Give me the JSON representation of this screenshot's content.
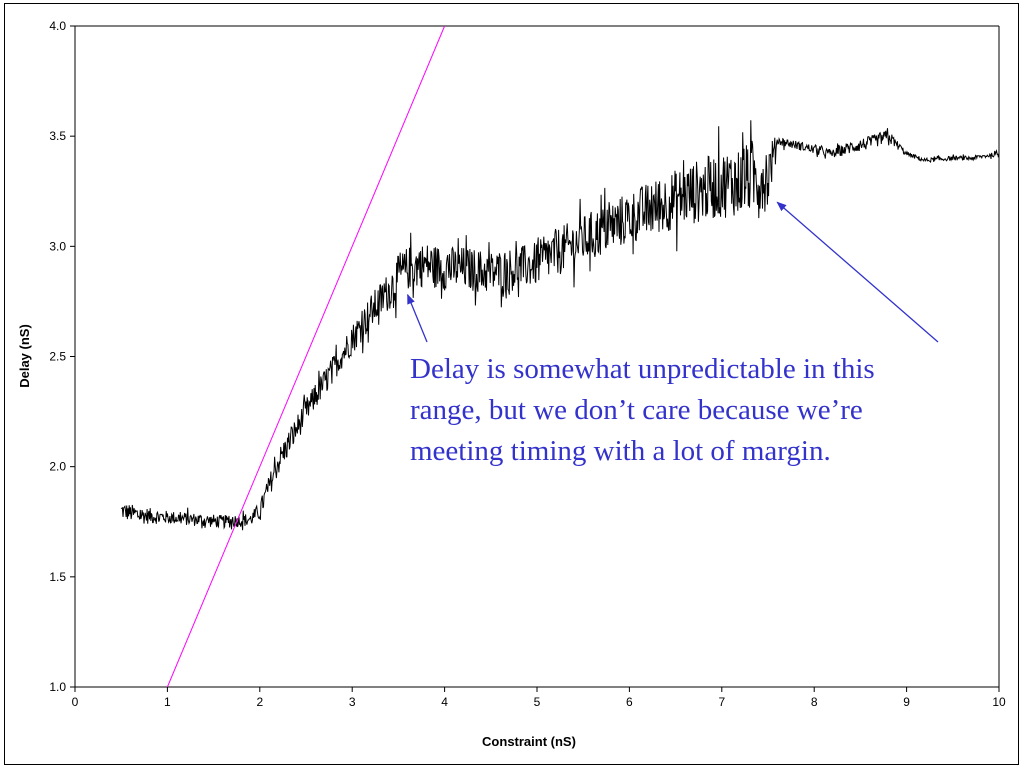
{
  "chart_data": {
    "type": "line",
    "xlabel": "Constraint (nS)",
    "ylabel": "Delay (nS)",
    "xlim": [
      0,
      10
    ],
    "ylim": [
      1.0,
      4.0
    ],
    "x_ticks": [
      "0",
      "1",
      "2",
      "3",
      "4",
      "5",
      "6",
      "7",
      "8",
      "9",
      "10"
    ],
    "y_ticks": [
      "1.0",
      "1.5",
      "2.0",
      "2.5",
      "3.0",
      "3.5",
      "4.0"
    ],
    "grid": false,
    "legend": "none",
    "series": [
      {
        "color": "#000000",
        "x": [
          0.5,
          0.7,
          1.0,
          1.3,
          1.6,
          1.9,
          2.0,
          2.2,
          2.5,
          2.8,
          3.0,
          3.2,
          3.4,
          3.5,
          3.6,
          3.8,
          4.0,
          4.2,
          4.5,
          4.8,
          5.0,
          5.2,
          5.5,
          5.8,
          6.0,
          6.3,
          6.6,
          6.9,
          7.2,
          7.5,
          7.6,
          7.8,
          8.0,
          8.2,
          8.4,
          8.6,
          8.8,
          9.0,
          9.2,
          9.5,
          9.7,
          10.0
        ],
        "y": [
          1.8,
          1.78,
          1.77,
          1.76,
          1.75,
          1.76,
          1.8,
          2.02,
          2.25,
          2.45,
          2.58,
          2.7,
          2.8,
          2.86,
          2.9,
          2.92,
          2.9,
          2.9,
          2.88,
          2.9,
          2.92,
          2.97,
          3.03,
          3.09,
          3.13,
          3.18,
          3.23,
          3.27,
          3.3,
          3.32,
          3.48,
          3.46,
          3.44,
          3.42,
          3.45,
          3.47,
          3.5,
          3.42,
          3.39,
          3.4,
          3.4,
          3.42
        ],
        "noise": [
          0.04,
          0.04,
          0.03,
          0.03,
          0.03,
          0.03,
          0.04,
          0.06,
          0.06,
          0.06,
          0.07,
          0.08,
          0.09,
          0.1,
          0.1,
          0.1,
          0.1,
          0.1,
          0.1,
          0.1,
          0.1,
          0.11,
          0.11,
          0.12,
          0.12,
          0.13,
          0.14,
          0.15,
          0.16,
          0.16,
          0.02,
          0.02,
          0.02,
          0.02,
          0.03,
          0.03,
          0.03,
          0.01,
          0.01,
          0.01,
          0.01,
          0.01
        ]
      },
      {
        "color": "#ff00ff",
        "x": [
          1.0,
          4.0
        ],
        "y": [
          1.0,
          4.0
        ]
      }
    ],
    "annotations": [
      {
        "text_lines": [
          "Delay is somewhat unpredictable in this",
          "range, but we don’t care because we’re",
          "meeting timing with a lot of margin."
        ],
        "color": "#3333cc",
        "arrows_to": [
          [
            3.6,
            2.78
          ],
          [
            7.6,
            3.2
          ]
        ]
      }
    ]
  }
}
